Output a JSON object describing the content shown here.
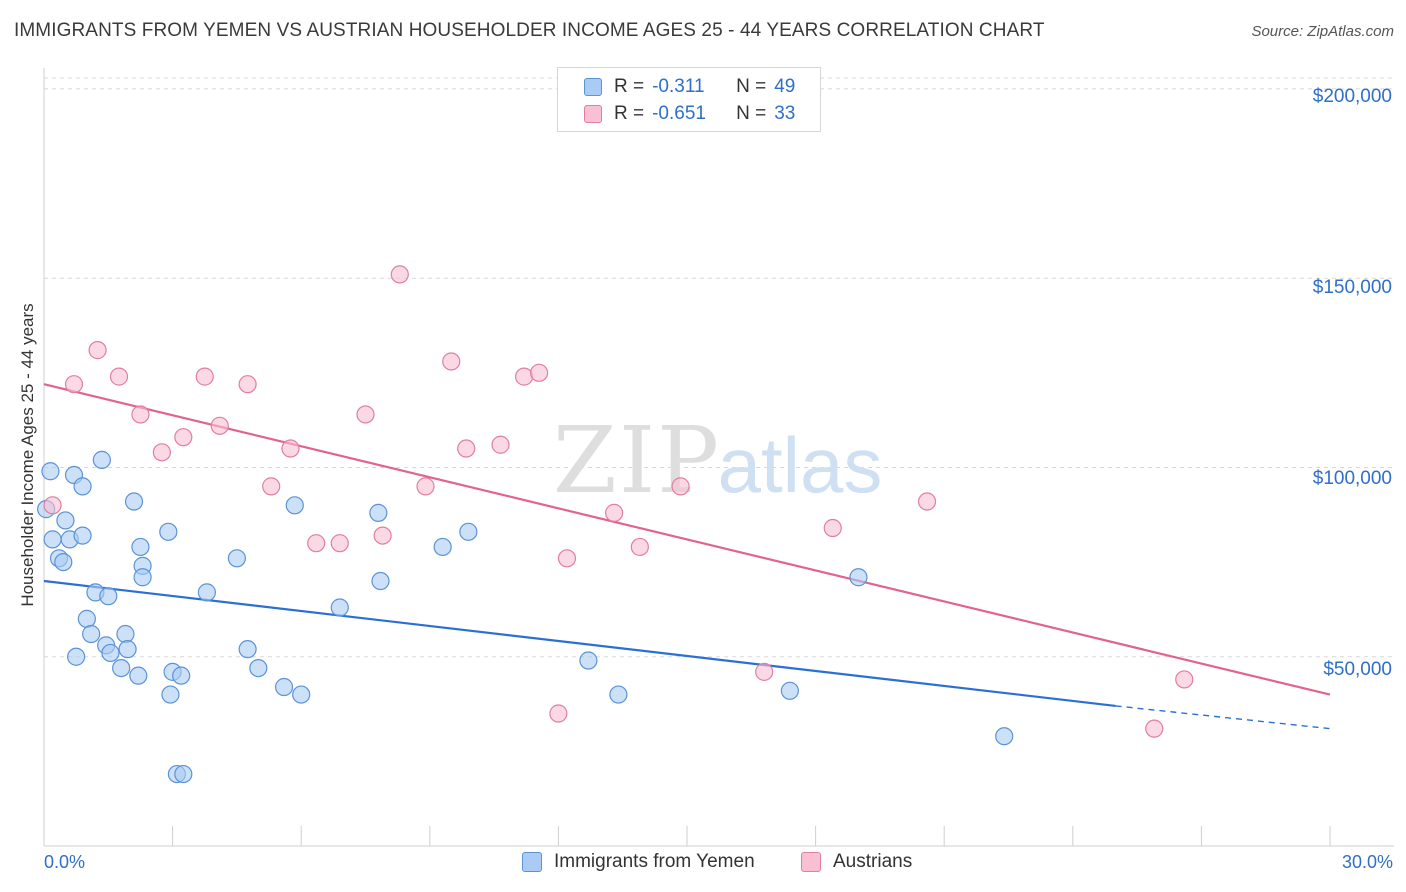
{
  "title": "IMMIGRANTS FROM YEMEN VS AUSTRIAN HOUSEHOLDER INCOME AGES 25 - 44 YEARS CORRELATION CHART",
  "source": "Source: ZipAtlas.com",
  "watermark": {
    "zip": "ZIP",
    "atlas": "atlas"
  },
  "colors": {
    "blue_fill": "#aaccf4",
    "blue_stroke": "#5b93d6",
    "blue_line": "#2b6fd4",
    "pink_fill": "#f8c0d2",
    "pink_stroke": "#e07fa0",
    "pink_line": "#e0648e",
    "tick_text": "#2f6fc9",
    "grid": "#d8d8d8"
  },
  "legend": {
    "rows": [
      {
        "r_label": "R =",
        "r_value": "-0.311",
        "n_label": "N =",
        "n_value": "49"
      },
      {
        "r_label": "R =",
        "r_value": "-0.651",
        "n_label": "N =",
        "n_value": "33"
      }
    ]
  },
  "chart_data": {
    "type": "scatter",
    "title": "IMMIGRANTS FROM YEMEN VS AUSTRIAN HOUSEHOLDER INCOME AGES 25 - 44 YEARS CORRELATION CHART",
    "xlabel": "",
    "ylabel": "Householder Income Ages 25 - 44 years",
    "xlim": [
      0,
      30
    ],
    "ylim": [
      0,
      205000
    ],
    "x_tick_labels": [
      "0.0%",
      "30.0%"
    ],
    "y_ticks": [
      50000,
      100000,
      150000,
      200000
    ],
    "y_tick_labels": [
      "$50,000",
      "$100,000",
      "$150,000",
      "$200,000"
    ],
    "grid": true,
    "legend_position": "top-center",
    "series": [
      {
        "name": "Immigrants from Yemen",
        "color": "#aaccf4",
        "points": [
          [
            0.05,
            89000
          ],
          [
            0.15,
            99000
          ],
          [
            0.2,
            81000
          ],
          [
            0.35,
            76000
          ],
          [
            0.45,
            75000
          ],
          [
            0.5,
            86000
          ],
          [
            0.6,
            81000
          ],
          [
            0.7,
            98000
          ],
          [
            0.9,
            95000
          ],
          [
            0.9,
            82000
          ],
          [
            1.0,
            60000
          ],
          [
            1.1,
            56000
          ],
          [
            1.2,
            67000
          ],
          [
            0.75,
            50000
          ],
          [
            1.35,
            102000
          ],
          [
            1.45,
            53000
          ],
          [
            1.5,
            66000
          ],
          [
            1.55,
            51000
          ],
          [
            1.8,
            47000
          ],
          [
            1.9,
            56000
          ],
          [
            1.95,
            52000
          ],
          [
            2.1,
            91000
          ],
          [
            2.2,
            45000
          ],
          [
            2.25,
            79000
          ],
          [
            2.3,
            74000
          ],
          [
            2.3,
            71000
          ],
          [
            2.9,
            83000
          ],
          [
            2.95,
            40000
          ],
          [
            3.0,
            46000
          ],
          [
            3.2,
            45000
          ],
          [
            3.1,
            19000
          ],
          [
            3.25,
            19000
          ],
          [
            3.8,
            67000
          ],
          [
            4.5,
            76000
          ],
          [
            4.75,
            52000
          ],
          [
            5.0,
            47000
          ],
          [
            5.6,
            42000
          ],
          [
            5.85,
            90000
          ],
          [
            6.0,
            40000
          ],
          [
            6.9,
            63000
          ],
          [
            7.8,
            88000
          ],
          [
            7.85,
            70000
          ],
          [
            9.3,
            79000
          ],
          [
            9.9,
            83000
          ],
          [
            12.7,
            49000
          ],
          [
            13.4,
            40000
          ],
          [
            17.4,
            41000
          ],
          [
            19.0,
            71000
          ],
          [
            22.4,
            29000
          ]
        ]
      },
      {
        "name": "Austrians",
        "color": "#f8c0d2",
        "points": [
          [
            0.2,
            90000
          ],
          [
            0.7,
            122000
          ],
          [
            1.25,
            131000
          ],
          [
            1.75,
            124000
          ],
          [
            2.25,
            114000
          ],
          [
            2.75,
            104000
          ],
          [
            3.25,
            108000
          ],
          [
            3.75,
            124000
          ],
          [
            4.1,
            111000
          ],
          [
            4.75,
            122000
          ],
          [
            5.3,
            95000
          ],
          [
            5.75,
            105000
          ],
          [
            6.35,
            80000
          ],
          [
            6.9,
            80000
          ],
          [
            7.5,
            114000
          ],
          [
            7.9,
            82000
          ],
          [
            8.3,
            151000
          ],
          [
            8.9,
            95000
          ],
          [
            9.5,
            128000
          ],
          [
            9.85,
            105000
          ],
          [
            10.65,
            106000
          ],
          [
            11.2,
            124000
          ],
          [
            11.55,
            125000
          ],
          [
            12.0,
            35000
          ],
          [
            12.2,
            76000
          ],
          [
            13.3,
            88000
          ],
          [
            13.9,
            79000
          ],
          [
            14.85,
            95000
          ],
          [
            16.8,
            46000
          ],
          [
            18.4,
            84000
          ],
          [
            20.6,
            91000
          ],
          [
            25.9,
            31000
          ],
          [
            26.6,
            44000
          ]
        ]
      }
    ],
    "trend_lines": [
      {
        "series": "Immigrants from Yemen",
        "x0": 0,
        "y0": 70000,
        "x1": 25,
        "y1": 37000,
        "dashed_to_x": 30,
        "dashed_to_y": 31000
      },
      {
        "series": "Austrians",
        "x0": 0,
        "y0": 122000,
        "x1": 30,
        "y1": 40000
      }
    ]
  },
  "bottom_legend": [
    {
      "label": "Immigrants from Yemen"
    },
    {
      "label": "Austrians"
    }
  ]
}
